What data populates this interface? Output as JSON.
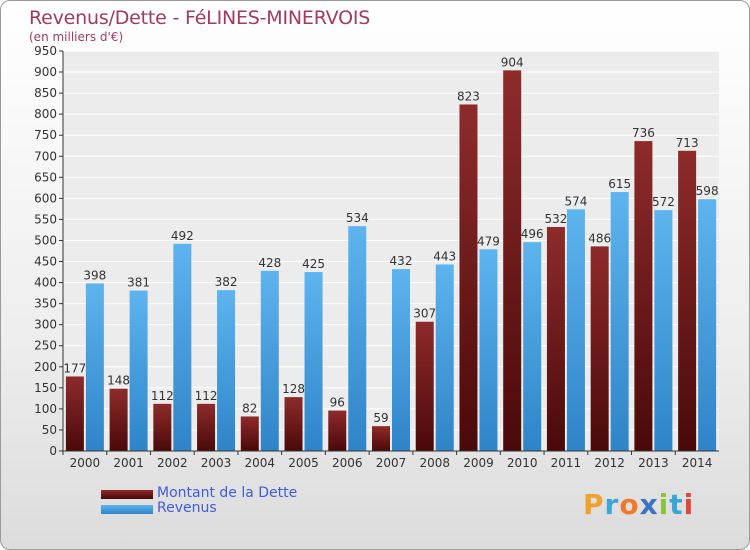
{
  "chart_data": {
    "type": "bar",
    "title": "Revenus/Dette - FéLINES-MINERVOIS",
    "subtitle": "(en milliers d'€)",
    "categories": [
      "2000",
      "2001",
      "2002",
      "2003",
      "2004",
      "2005",
      "2006",
      "2007",
      "2008",
      "2009",
      "2010",
      "2011",
      "2012",
      "2013",
      "2014"
    ],
    "series": [
      {
        "name": "Montant de la Dette",
        "color": "#7a1f1f",
        "values": [
          177,
          148,
          112,
          112,
          82,
          128,
          96,
          59,
          307,
          823,
          904,
          532,
          486,
          736,
          713
        ]
      },
      {
        "name": "Revenus",
        "color": "#4aa3e2",
        "values": [
          398,
          381,
          492,
          382,
          428,
          425,
          534,
          432,
          443,
          479,
          496,
          574,
          615,
          572,
          598
        ]
      }
    ],
    "ylim": [
      0,
      950
    ],
    "yticks": [
      0,
      50,
      100,
      150,
      200,
      250,
      300,
      350,
      400,
      450,
      500,
      550,
      600,
      650,
      700,
      750,
      800,
      850,
      900,
      950
    ],
    "grid": true,
    "legend_position": "bottom-left"
  },
  "branding": {
    "logo_text": "Proxiti"
  }
}
